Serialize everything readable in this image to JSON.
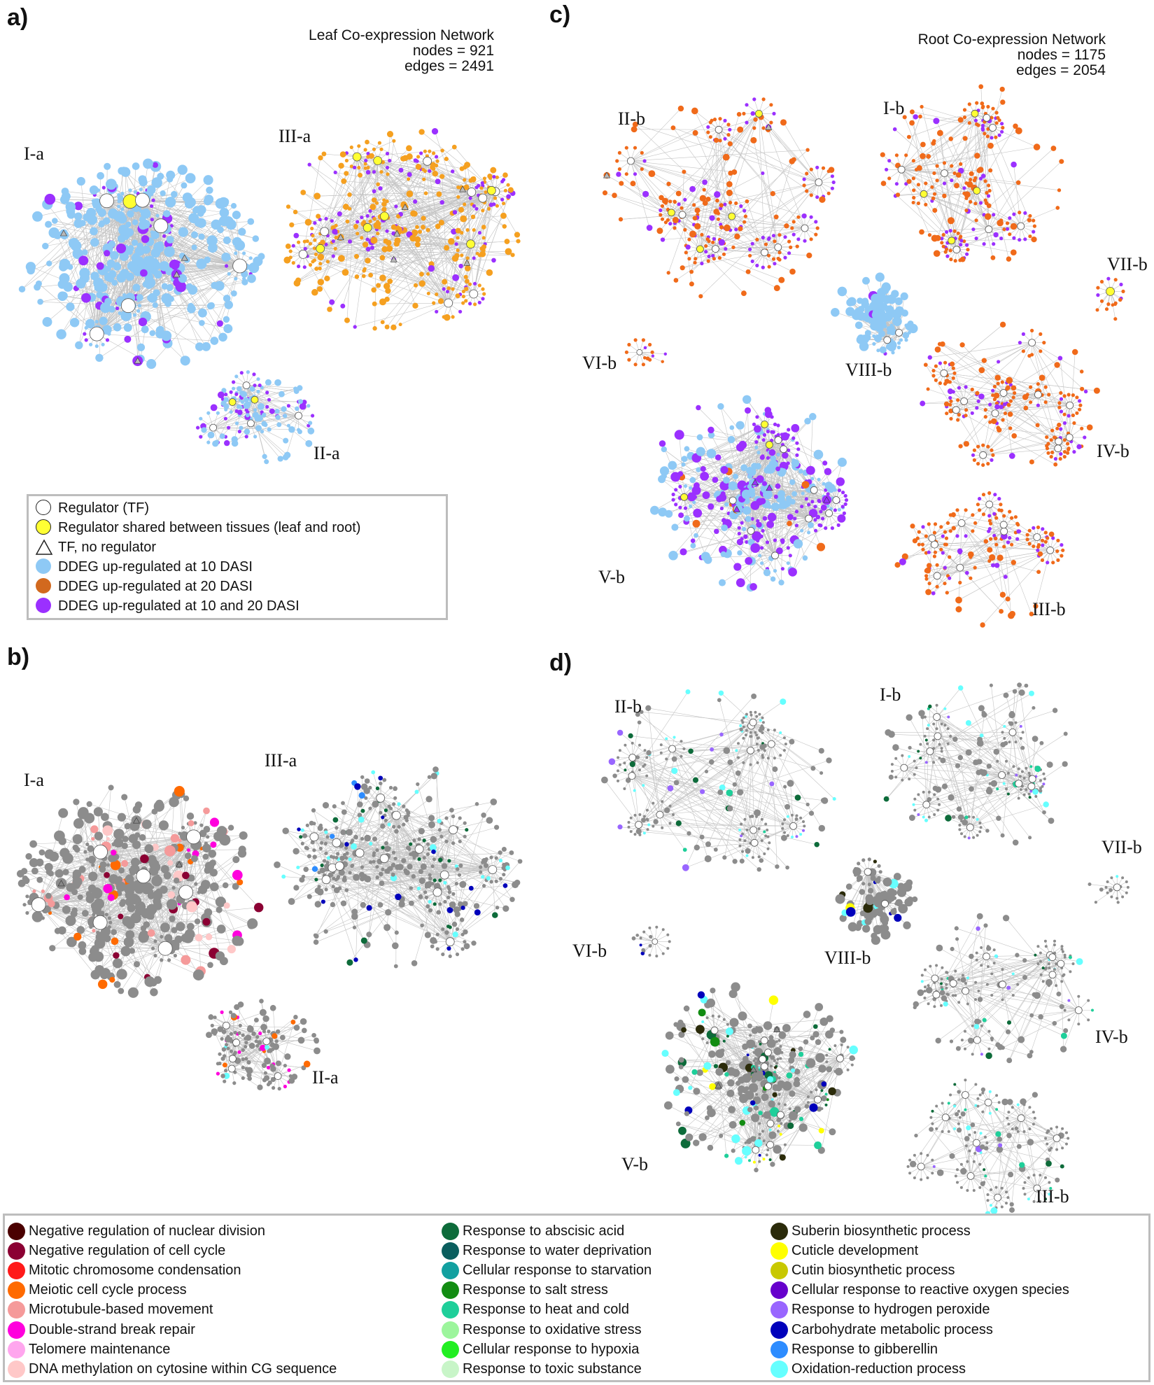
{
  "panels": {
    "a": {
      "letter": "a)",
      "title": "Leaf Co-expression Network",
      "nodes": "nodes = 921",
      "edges": "edges = 2491",
      "clusters": [
        "I-a",
        "III-a",
        "II-a"
      ]
    },
    "b": {
      "letter": "b)",
      "clusters": [
        "I-a",
        "III-a",
        "II-a"
      ]
    },
    "c": {
      "letter": "c)",
      "title": "Root Co-expression Network",
      "nodes": "nodes = 1175",
      "edges": "edges = 2054",
      "clusters": [
        "II-b",
        "I-b",
        "VII-b",
        "VI-b",
        "VIII-b",
        "IV-b",
        "V-b",
        "III-b"
      ]
    },
    "d": {
      "letter": "d)",
      "clusters": [
        "II-b",
        "I-b",
        "VII-b",
        "VI-b",
        "VIII-b",
        "IV-b",
        "V-b",
        "III-b"
      ]
    }
  },
  "node_legend": [
    {
      "label": "Regulator (TF)",
      "shape": "circle",
      "fill": "#ffffff"
    },
    {
      "label": "Regulator shared between tissues (leaf and root)",
      "shape": "circle",
      "fill": "#ffff33"
    },
    {
      "label": "TF, no regulator",
      "shape": "triangle",
      "fill": "#ffffff"
    },
    {
      "label": "DDEG up-regulated at 10 DASI",
      "shape": "circle",
      "fill": "#8ec9f5"
    },
    {
      "label": "DDEG up-regulated at 20 DASI",
      "shape": "circle",
      "fill": "#d2691e"
    },
    {
      "label": "DDEG up-regulated at 10 and 20 DASI",
      "shape": "circle",
      "fill": "#9b30ff"
    }
  ],
  "go_legend": [
    [
      {
        "label": "Negative regulation of nuclear division",
        "color": "#4a0000"
      },
      {
        "label": "Negative regulation of cell cycle",
        "color": "#8b0033"
      },
      {
        "label": "Mitotic chromosome condensation",
        "color": "#ff1a1a"
      },
      {
        "label": "Meiotic cell cycle process",
        "color": "#ff6a00"
      },
      {
        "label": "Microtubule-based movement",
        "color": "#f59a9a"
      },
      {
        "label": "Double-strand break repair",
        "color": "#ff00dd"
      },
      {
        "label": "Telomere maintenance",
        "color": "#ffa6ee"
      },
      {
        "label": "DNA methylation on cytosine within CG sequence",
        "color": "#ffc8c8"
      }
    ],
    [
      {
        "label": "Response to abscisic acid",
        "color": "#0d6b3a"
      },
      {
        "label": "Response to water deprivation",
        "color": "#0a5e5e"
      },
      {
        "label": "Cellular response to starvation",
        "color": "#12a0a0"
      },
      {
        "label": "Response to salt stress",
        "color": "#128c12"
      },
      {
        "label": "Response to heat and cold",
        "color": "#1fcf9a"
      },
      {
        "label": "Response to oxidative stress",
        "color": "#9cf59c"
      },
      {
        "label": "Cellular response to hypoxia",
        "color": "#22ee22"
      },
      {
        "label": "Response to toxic substance",
        "color": "#c8f5c8"
      }
    ],
    [
      {
        "label": "Suberin biosynthetic process",
        "color": "#2b2b0a"
      },
      {
        "label": "Cuticle development",
        "color": "#ffff00"
      },
      {
        "label": "Cutin biosynthetic process",
        "color": "#c8c800"
      },
      {
        "label": "Cellular response to reactive oxygen species",
        "color": "#6600cc"
      },
      {
        "label": "Response to hydrogen peroxide",
        "color": "#9966ff"
      },
      {
        "label": "Carbohydrate metabolic process",
        "color": "#0000bb"
      },
      {
        "label": "Response to gibberellin",
        "color": "#2d8cff"
      },
      {
        "label": "Oxidation-reduction process",
        "color": "#66ffff"
      }
    ]
  ],
  "colors": {
    "light_blue": "#8ec9f5",
    "orange": "#f5a020",
    "dark_orange": "#f06a1a",
    "purple": "#9b30ff",
    "yellow": "#ffff33",
    "gray": "#8c8c8c",
    "edge": "#c8c8c8"
  }
}
